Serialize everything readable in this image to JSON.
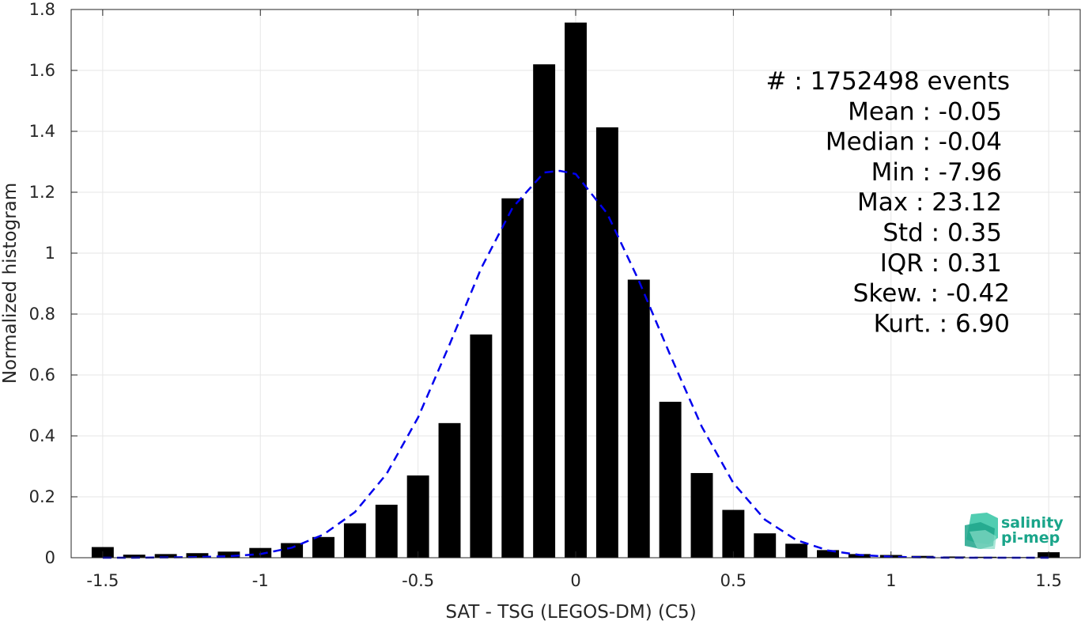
{
  "chart_data": {
    "type": "bar",
    "title": "",
    "xlabel": "SAT - TSG (LEGOS-DM) (C5)",
    "ylabel": "Normalized histogram",
    "xlim": [
      -1.6,
      1.6
    ],
    "ylim": [
      0,
      1.8
    ],
    "xticks": [
      -1.5,
      -1,
      -0.5,
      0,
      0.5,
      1,
      1.5
    ],
    "xtick_labels": [
      "-1.5",
      "-1",
      "-0.5",
      "0",
      "0.5",
      "1",
      "1.5"
    ],
    "yticks": [
      0,
      0.2,
      0.4,
      0.6,
      0.8,
      1,
      1.2,
      1.4,
      1.6,
      1.8
    ],
    "ytick_labels": [
      "0",
      "0.2",
      "0.4",
      "0.6",
      "0.8",
      "1",
      "1.2",
      "1.4",
      "1.6",
      "1.8"
    ],
    "grid": true,
    "bar_color": "#000000",
    "bar_width": 0.07,
    "bins": [
      -1.5,
      -1.4,
      -1.3,
      -1.2,
      -1.1,
      -1.0,
      -0.9,
      -0.8,
      -0.7,
      -0.6,
      -0.5,
      -0.4,
      -0.3,
      -0.2,
      -0.1,
      0.0,
      0.1,
      0.2,
      0.3,
      0.4,
      0.5,
      0.6,
      0.7,
      0.8,
      0.9,
      1.0,
      1.1,
      1.2,
      1.3,
      1.4,
      1.5
    ],
    "values": [
      0.035,
      0.01,
      0.012,
      0.015,
      0.02,
      0.032,
      0.048,
      0.068,
      0.113,
      0.174,
      0.27,
      0.442,
      0.733,
      1.18,
      1.62,
      1.757,
      1.413,
      0.913,
      0.512,
      0.278,
      0.157,
      0.08,
      0.046,
      0.025,
      0.012,
      0.009,
      0.006,
      0.004,
      0.003,
      0.002,
      0.018
    ],
    "fit_curve": {
      "color": "#0000ee",
      "style": "dashed",
      "x": [
        -1.5,
        -1.4,
        -1.3,
        -1.2,
        -1.1,
        -1.0,
        -0.9,
        -0.8,
        -0.7,
        -0.6,
        -0.5,
        -0.4,
        -0.3,
        -0.2,
        -0.1,
        -0.05,
        0.0,
        0.1,
        0.2,
        0.3,
        0.4,
        0.5,
        0.6,
        0.7,
        0.8,
        0.9,
        1.0,
        1.1,
        1.2,
        1.3,
        1.4,
        1.5
      ],
      "y": [
        0.0,
        0.0,
        0.001,
        0.002,
        0.005,
        0.012,
        0.033,
        0.076,
        0.15,
        0.275,
        0.46,
        0.7,
        0.95,
        1.15,
        1.265,
        1.27,
        1.26,
        1.13,
        0.91,
        0.665,
        0.43,
        0.245,
        0.125,
        0.058,
        0.024,
        0.009,
        0.003,
        0.001,
        0.0,
        0.0,
        0.0,
        0.0
      ]
    },
    "annotations": [
      {
        "name": "events",
        "text": "#  : 1752498 events"
      },
      {
        "name": "mean",
        "text": "Mean : -0.05"
      },
      {
        "name": "median",
        "text": "Median : -0.04"
      },
      {
        "name": "min",
        "text": "Min : -7.96"
      },
      {
        "name": "max",
        "text": "Max : 23.12"
      },
      {
        "name": "std",
        "text": "Std : 0.35"
      },
      {
        "name": "iqr",
        "text": "IQR : 0.31"
      },
      {
        "name": "skew",
        "text": "Skew. : -0.42"
      },
      {
        "name": "kurt",
        "text": "Kurt. : 6.90"
      }
    ]
  },
  "logo": {
    "line1": "salinity",
    "line2": "pi-mep",
    "color_text": "#1aa58a",
    "color_shape": "#2bbf9c"
  }
}
